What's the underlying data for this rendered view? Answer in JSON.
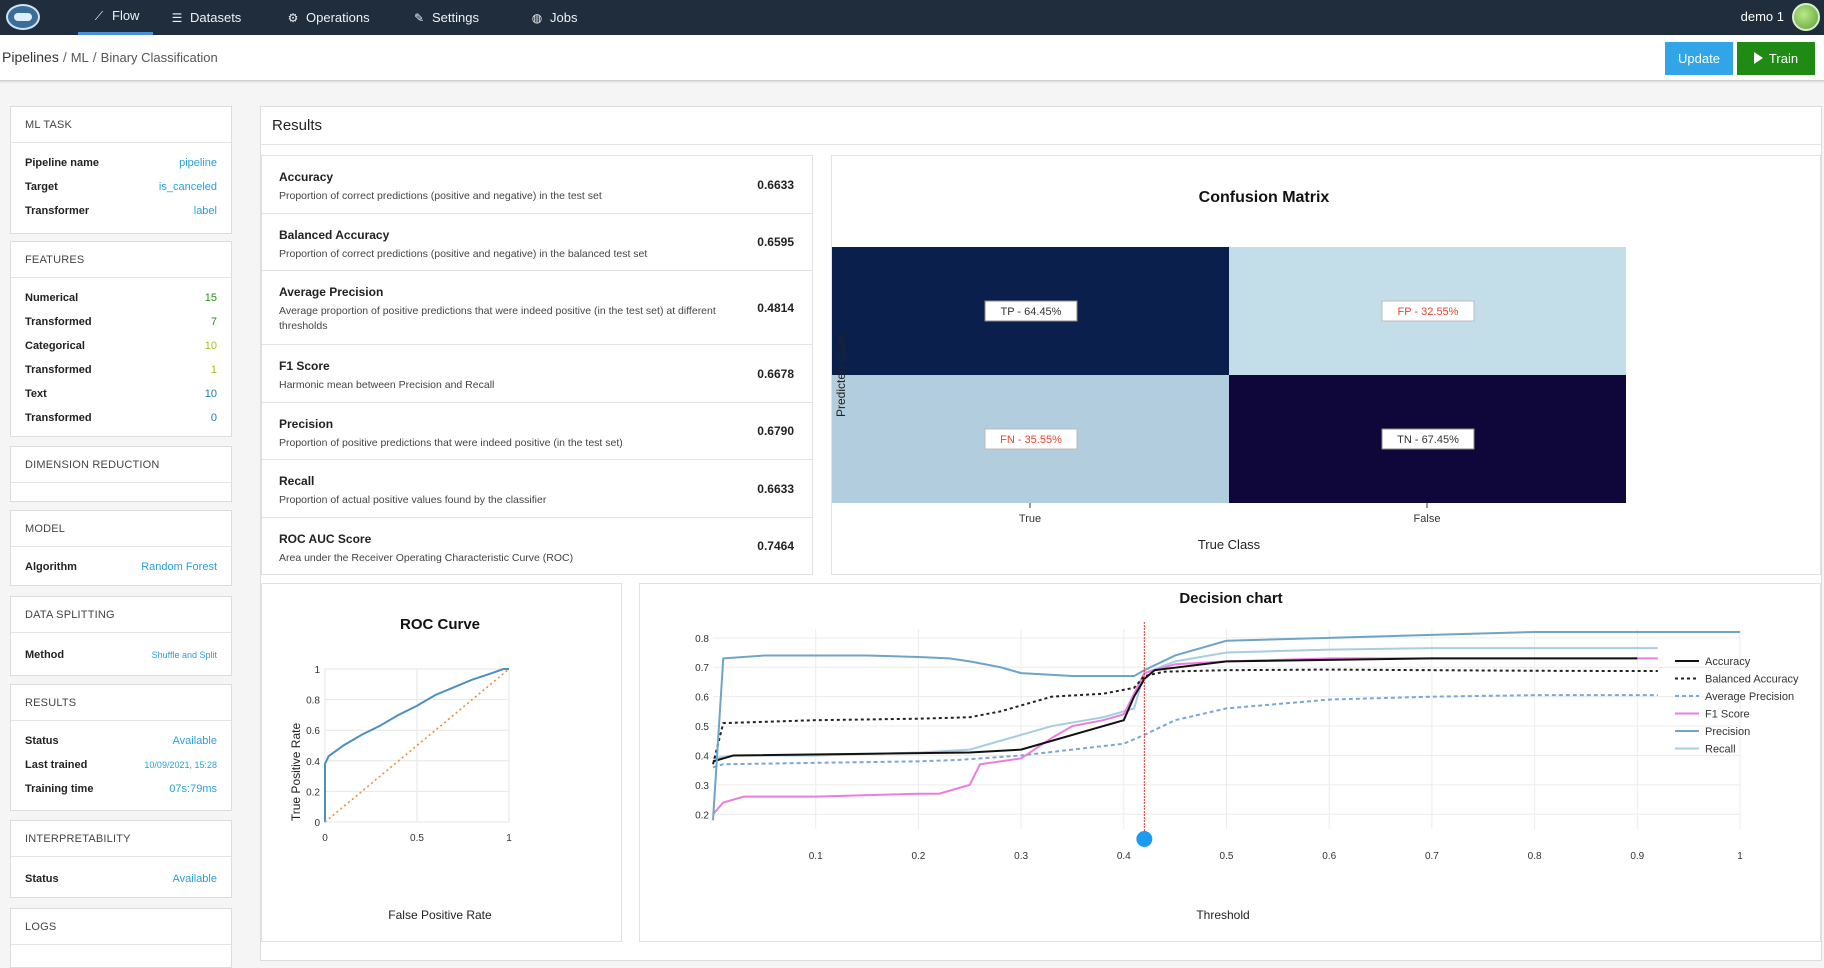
{
  "nav": {
    "tabs": [
      {
        "label": "Flow",
        "icon": "trend-icon",
        "active": true
      },
      {
        "label": "Datasets",
        "icon": "list-icon"
      },
      {
        "label": "Operations",
        "icon": "gear-icon"
      },
      {
        "label": "Settings",
        "icon": "wrench-icon"
      },
      {
        "label": "Jobs",
        "icon": "globe-icon"
      }
    ],
    "user": "demo 1"
  },
  "breadcrumb": {
    "root": "Pipelines",
    "sep": "/",
    "mid": "ML",
    "leaf": "Binary Classification"
  },
  "actions": {
    "update": "Update",
    "train": "Train"
  },
  "sidebar": {
    "ml_task": {
      "title": "ML TASK",
      "rows": [
        {
          "k": "Pipeline name",
          "v": "pipeline"
        },
        {
          "k": "Target",
          "v": "is_canceled"
        },
        {
          "k": "Transformer",
          "v": "label"
        }
      ]
    },
    "features": {
      "title": "FEATURES",
      "rows": [
        {
          "k": "Numerical",
          "v": "15"
        },
        {
          "k": "Transformed",
          "v": "7"
        },
        {
          "k": "Categorical",
          "v": "10"
        },
        {
          "k": "Transformed",
          "v": "1"
        },
        {
          "k": "Text",
          "v": "10"
        },
        {
          "k": "Transformed",
          "v": "0"
        }
      ]
    },
    "dimension": {
      "title": "DIMENSION REDUCTION"
    },
    "model": {
      "title": "MODEL",
      "rows": [
        {
          "k": "Algorithm",
          "v": "Random Forest"
        }
      ]
    },
    "splitting": {
      "title": "DATA SPLITTING",
      "rows": [
        {
          "k": "Method",
          "v": "Shuffle and Split"
        }
      ]
    },
    "results": {
      "title": "RESULTS",
      "rows": [
        {
          "k": "Status",
          "v": "Available"
        },
        {
          "k": "Last trained",
          "v": "10/09/2021, 15:28"
        },
        {
          "k": "Training time",
          "v": "07s:79ms"
        }
      ]
    },
    "interpretability": {
      "title": "INTERPRETABILITY",
      "rows": [
        {
          "k": "Status",
          "v": "Available"
        }
      ]
    },
    "logs": {
      "title": "LOGS"
    }
  },
  "results": {
    "title": "Results",
    "metrics": [
      {
        "name": "Accuracy",
        "desc": "Proportion of correct predictions (positive and negative) in the test set",
        "value": "0.6633"
      },
      {
        "name": "Balanced Accuracy",
        "desc": "Proportion of correct predictions (positive and negative) in the balanced test set",
        "value": "0.6595"
      },
      {
        "name": "Average Precision",
        "desc": "Average proportion of positive predictions that were indeed positive (in the test set) at different thresholds",
        "value": "0.4814"
      },
      {
        "name": "F1 Score",
        "desc": "Harmonic mean between Precision and Recall",
        "value": "0.6678"
      },
      {
        "name": "Precision",
        "desc": "Proportion of positive predictions that were indeed positive (in the test set)",
        "value": "0.6790"
      },
      {
        "name": "Recall",
        "desc": "Proportion of actual positive values found by the classifier",
        "value": "0.6633"
      },
      {
        "name": "ROC AUC Score",
        "desc": "Area under the Receiver Operating Characteristic Curve (ROC)",
        "value": "0.7464"
      }
    ]
  },
  "confusion_matrix": {
    "title": "Confusion Matrix",
    "xlabel": "True Class",
    "ylabel": "Predicted Class",
    "x_ticks": [
      "True",
      "False"
    ],
    "cells": [
      {
        "label": "TP - 64.45%",
        "color": "#0b1f4d",
        "text_color": "#333333"
      },
      {
        "label": "FP - 32.55%",
        "color": "#c3dde9",
        "text_color": "#e8452e"
      },
      {
        "label": "FN - 35.55%",
        "color": "#b2cddd",
        "text_color": "#e8452e"
      },
      {
        "label": "TN - 67.45%",
        "color": "#0f0739",
        "text_color": "#333333"
      }
    ]
  },
  "chart_data": [
    {
      "type": "line",
      "title": "ROC Curve",
      "xlabel": "False Positive Rate",
      "ylabel": "True Positive Rate",
      "xlim": [
        0,
        1
      ],
      "ylim": [
        0,
        1
      ],
      "x_ticks": [
        "0",
        "0.5",
        "1"
      ],
      "y_ticks": [
        "0",
        "0.2",
        "0.4",
        "0.6",
        "0.8",
        "1"
      ],
      "series": [
        {
          "color": "#4a90c2",
          "x": [
            0,
            0.0,
            0.02,
            0.1,
            0.2,
            0.3,
            0.4,
            0.5,
            0.6,
            0.7,
            0.8,
            0.9,
            0.97,
            1.0
          ],
          "y": [
            0,
            0.38,
            0.43,
            0.5,
            0.57,
            0.63,
            0.7,
            0.76,
            0.83,
            0.88,
            0.93,
            0.97,
            1.0,
            1.0
          ]
        },
        {
          "color": "#f08a3c",
          "dashed": true,
          "x": [
            0,
            1
          ],
          "y": [
            0,
            1
          ]
        }
      ]
    },
    {
      "type": "line",
      "title": "Decision chart",
      "xlabel": "Threshold",
      "ylabel": "",
      "xlim": [
        0,
        1
      ],
      "ylim": [
        0.15,
        0.83
      ],
      "x_ticks": [
        "0.1",
        "0.2",
        "0.3",
        "0.4",
        "0.5",
        "0.6",
        "0.7",
        "0.8",
        "0.9",
        "1"
      ],
      "y_ticks": [
        "0.2",
        "0.3",
        "0.4",
        "0.5",
        "0.6",
        "0.7",
        "0.8"
      ],
      "threshold_marker": 0.42,
      "legend_position": "right",
      "series": [
        {
          "name": "Accuracy",
          "color": "#111111",
          "x": [
            0.0,
            0.02,
            0.25,
            0.3,
            0.4,
            0.41,
            0.42,
            0.43,
            0.5,
            0.7,
            0.9
          ],
          "y": [
            0.38,
            0.4,
            0.41,
            0.42,
            0.52,
            0.6,
            0.66,
            0.69,
            0.72,
            0.73,
            0.73
          ]
        },
        {
          "name": "Balanced Accuracy",
          "color": "#222222",
          "dash": "3,3",
          "x": [
            0.0,
            0.01,
            0.1,
            0.2,
            0.25,
            0.28,
            0.33,
            0.38,
            0.41,
            0.42,
            0.44,
            0.5,
            0.6,
            0.7,
            0.8,
            0.9,
            0.92
          ],
          "y": [
            0.37,
            0.51,
            0.52,
            0.525,
            0.53,
            0.55,
            0.6,
            0.61,
            0.63,
            0.67,
            0.685,
            0.69,
            0.692,
            0.69,
            0.688,
            0.687,
            0.687
          ]
        },
        {
          "name": "Average Precision",
          "color": "#7aa6d8",
          "dash": "4,3",
          "x": [
            0.0,
            0.01,
            0.1,
            0.2,
            0.24,
            0.3,
            0.4,
            0.42,
            0.45,
            0.5,
            0.6,
            0.7,
            0.8,
            0.92
          ],
          "y": [
            0.36,
            0.37,
            0.375,
            0.38,
            0.385,
            0.4,
            0.44,
            0.47,
            0.52,
            0.56,
            0.59,
            0.6,
            0.605,
            0.605
          ]
        },
        {
          "name": "F1 Score",
          "color": "#e97ee0",
          "x": [
            0.0,
            0.01,
            0.03,
            0.1,
            0.2,
            0.22,
            0.25,
            0.26,
            0.28,
            0.3,
            0.33,
            0.35,
            0.38,
            0.4,
            0.42,
            0.45,
            0.5,
            0.6,
            0.7,
            0.8,
            0.92
          ],
          "y": [
            0.2,
            0.24,
            0.26,
            0.26,
            0.27,
            0.27,
            0.3,
            0.37,
            0.38,
            0.39,
            0.46,
            0.5,
            0.52,
            0.54,
            0.68,
            0.71,
            0.72,
            0.73,
            0.73,
            0.73,
            0.73
          ]
        },
        {
          "name": "Precision",
          "color": "#6fa3c7",
          "x": [
            0.0,
            0.01,
            0.05,
            0.1,
            0.15,
            0.2,
            0.23,
            0.25,
            0.28,
            0.3,
            0.35,
            0.4,
            0.41,
            0.42,
            0.45,
            0.5,
            0.6,
            0.7,
            0.8,
            0.9,
            1.0
          ],
          "y": [
            0.18,
            0.73,
            0.74,
            0.74,
            0.74,
            0.735,
            0.73,
            0.72,
            0.7,
            0.68,
            0.67,
            0.67,
            0.67,
            0.69,
            0.74,
            0.79,
            0.8,
            0.81,
            0.82,
            0.82,
            0.82
          ]
        },
        {
          "name": "Recall",
          "color": "#a9cde0",
          "x": [
            0.0,
            0.02,
            0.1,
            0.2,
            0.25,
            0.28,
            0.33,
            0.38,
            0.41,
            0.42,
            0.45,
            0.5,
            0.6,
            0.7,
            0.8,
            0.92
          ],
          "y": [
            0.39,
            0.4,
            0.4,
            0.41,
            0.42,
            0.45,
            0.5,
            0.53,
            0.56,
            0.68,
            0.72,
            0.75,
            0.76,
            0.765,
            0.765,
            0.765
          ]
        }
      ]
    }
  ]
}
